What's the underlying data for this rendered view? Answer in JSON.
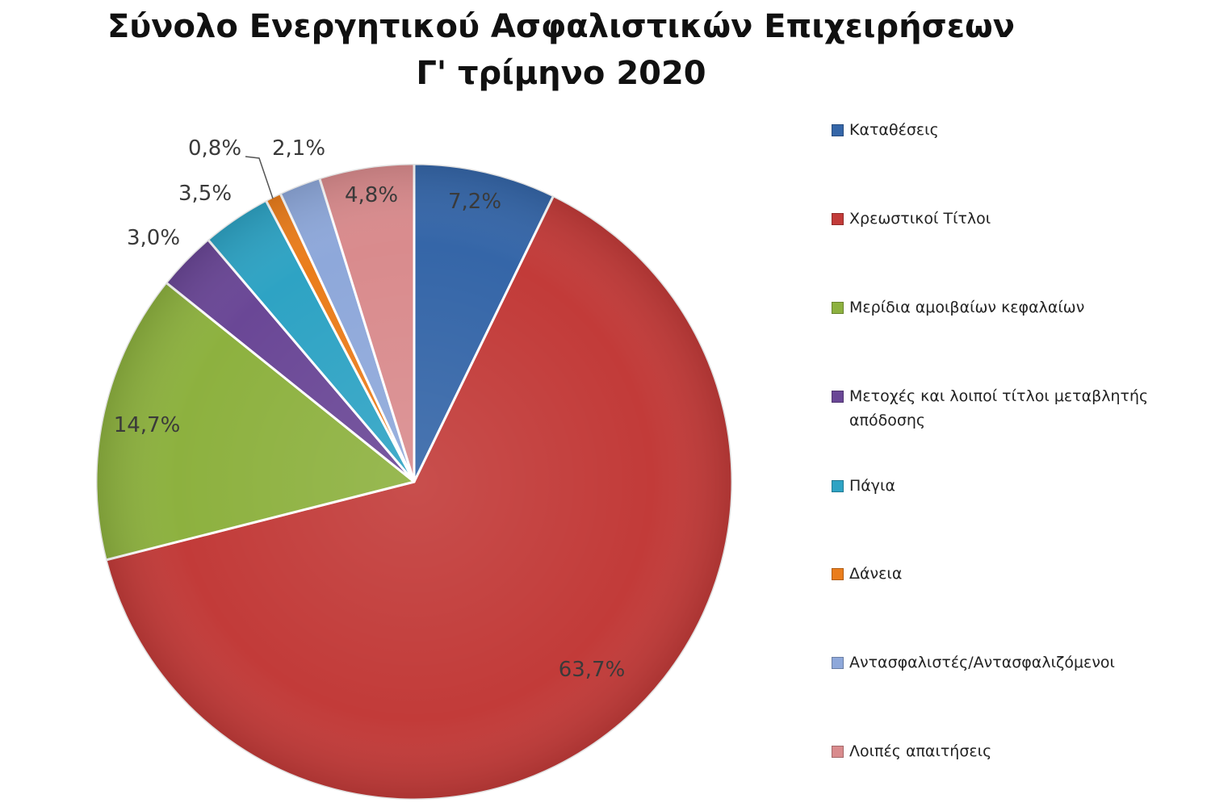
{
  "chart_data": {
    "type": "pie",
    "title_lines": [
      "Σύνολο Ενεργητικού Ασφαλιστικών Επιχειρήσεων",
      "Γ' τρίμηνο 2020"
    ],
    "slices": [
      {
        "name": "Καταθέσεις",
        "value": 7.2,
        "label": "7,2%",
        "color": "#3566a8"
      },
      {
        "name": "Χρεωστικοί Τίτλοι",
        "value": 63.7,
        "label": "63,7%",
        "color": "#c23b39"
      },
      {
        "name": "Μερίδια αμοιβαίων κεφαλαίων",
        "value": 14.7,
        "label": "14,7%",
        "color": "#8db13f"
      },
      {
        "name": "Μετοχές και λοιποί τίτλοι μεταβλητής απόδοσης",
        "value": 3.0,
        "label": "3,0%",
        "color": "#6a4796"
      },
      {
        "name": "Πάγια",
        "value": 3.5,
        "label": "3,5%",
        "color": "#2ea3c4"
      },
      {
        "name": "Δάνεια",
        "value": 0.8,
        "label": "0,8%",
        "color": "#ea7d1c"
      },
      {
        "name": "Αντασφαλιστές/Αντασφαλιζόμενοι",
        "value": 2.1,
        "label": "2,1%",
        "color": "#8ea8da"
      },
      {
        "name": "Λοιπές απαιτήσεις",
        "value": 4.8,
        "label": "4,8%",
        "color": "#d98b8d"
      }
    ],
    "start": "12 o'clock",
    "direction": "clockwise",
    "legend_position": "right"
  }
}
